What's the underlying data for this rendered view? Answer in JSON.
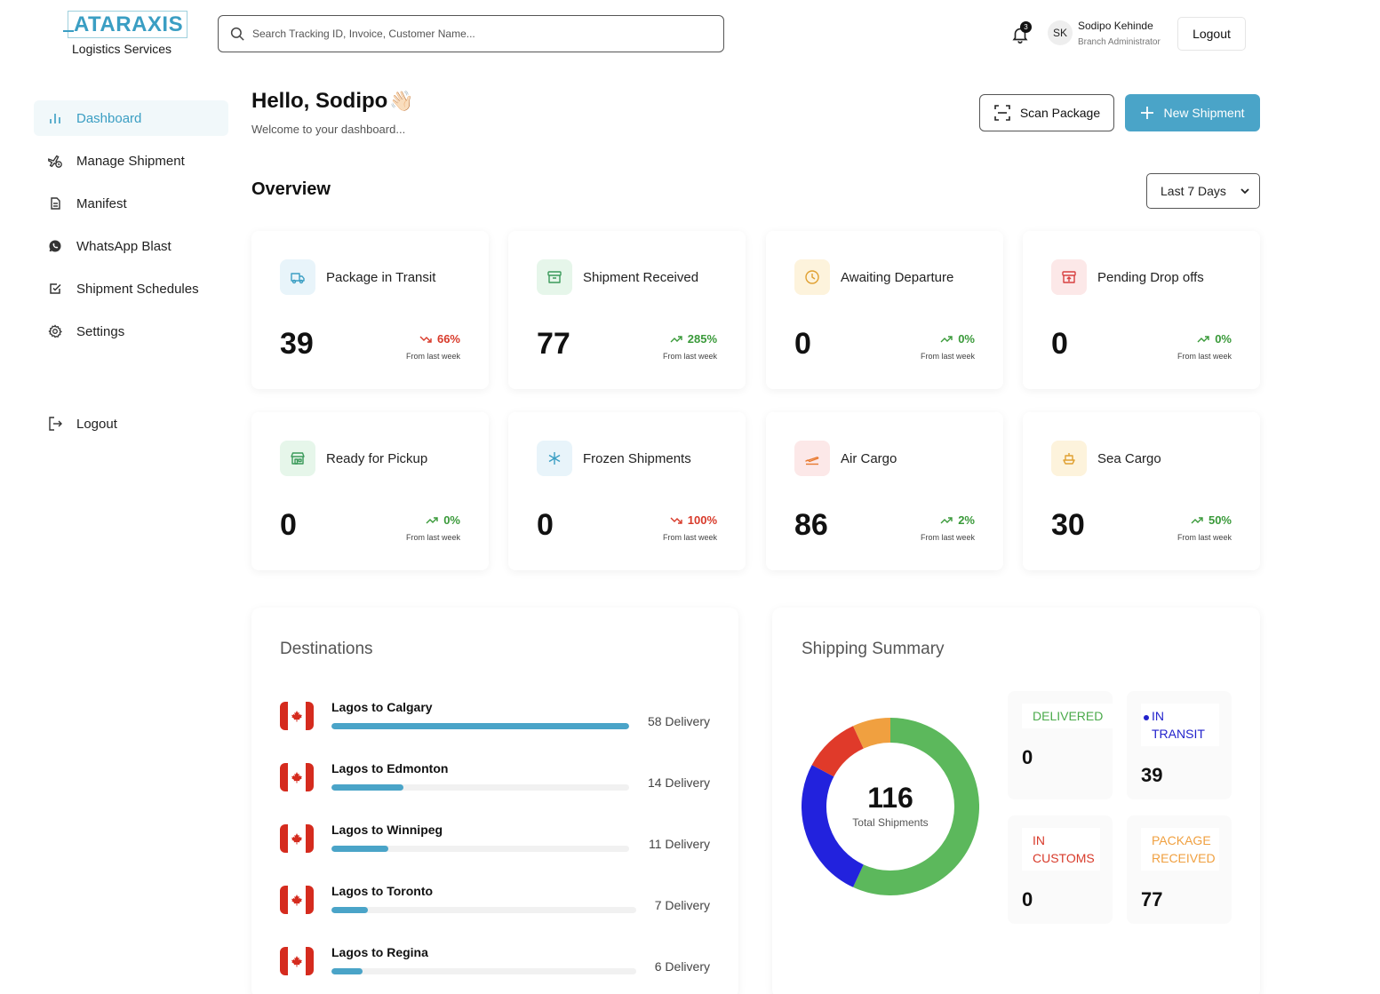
{
  "brand": {
    "name": "ATARAXIS",
    "subtitle": "Logistics Services"
  },
  "search": {
    "placeholder": "Search Tracking ID, Invoice, Customer Name..."
  },
  "notifications": {
    "count": "3"
  },
  "user": {
    "initials": "SK",
    "name": "Sodipo Kehinde",
    "role": "Branch Administrator"
  },
  "header": {
    "logout_label": "Logout"
  },
  "sidebar": {
    "items": [
      {
        "label": "Dashboard",
        "icon": "bar-chart-icon",
        "active": true
      },
      {
        "label": "Manage Shipment",
        "icon": "plane-clock-icon"
      },
      {
        "label": "Manifest",
        "icon": "document-icon"
      },
      {
        "label": "WhatsApp Blast",
        "icon": "whatsapp-icon"
      },
      {
        "label": "Shipment Schedules",
        "icon": "check-square-icon"
      },
      {
        "label": "Settings",
        "icon": "gear-icon"
      }
    ],
    "logout_label": "Logout"
  },
  "greeting": {
    "title": "Hello, Sodipo",
    "emoji": "👋🏻",
    "subtitle": "Welcome to your dashboard..."
  },
  "actions": {
    "scan_label": "Scan Package",
    "new_label": "New Shipment"
  },
  "overview": {
    "title": "Overview",
    "range": "Last 7 Days"
  },
  "stats": [
    {
      "label": "Package in Transit",
      "value": "39",
      "delta": "66%",
      "trend": "down",
      "sub": "From last week",
      "icon": "truck-icon",
      "color": "#3a9ec3",
      "bg": "#e8f4fa"
    },
    {
      "label": "Shipment Received",
      "value": "77",
      "delta": "285%",
      "trend": "up",
      "sub": "From last week",
      "icon": "archive-icon",
      "color": "#3a9a5a",
      "bg": "#e6f6ea"
    },
    {
      "label": "Awaiting Departure",
      "value": "0",
      "delta": "0%",
      "trend": "up",
      "sub": "From last week",
      "icon": "clock-icon",
      "color": "#e0a030",
      "bg": "#fdf3dc"
    },
    {
      "label": "Pending Drop offs",
      "value": "0",
      "delta": "0%",
      "trend": "up",
      "sub": "From last week",
      "icon": "box-upload-icon",
      "color": "#d84040",
      "bg": "#fce8e8"
    },
    {
      "label": "Ready for Pickup",
      "value": "0",
      "delta": "0%",
      "trend": "up",
      "sub": "From last week",
      "icon": "store-icon",
      "color": "#3a9a5a",
      "bg": "#e6f6ea"
    },
    {
      "label": "Frozen Shipments",
      "value": "0",
      "delta": "100%",
      "trend": "down",
      "sub": "From last week",
      "icon": "snowflake-icon",
      "color": "#3a9ec3",
      "bg": "#e8f4fa"
    },
    {
      "label": "Air Cargo",
      "value": "86",
      "delta": "2%",
      "trend": "up",
      "sub": "From last week",
      "icon": "plane-takeoff-icon",
      "color": "#e87a30",
      "bg": "#fce8e8"
    },
    {
      "label": "Sea Cargo",
      "value": "30",
      "delta": "50%",
      "trend": "up",
      "sub": "From last week",
      "icon": "ship-icon",
      "color": "#e0a030",
      "bg": "#fdf3dc"
    }
  ],
  "destinations": {
    "title": "Destinations",
    "max": 58,
    "items": [
      {
        "route": "Lagos to Calgary",
        "count": 58,
        "count_label": "58 Delivery"
      },
      {
        "route": "Lagos to Edmonton",
        "count": 14,
        "count_label": "14 Delivery"
      },
      {
        "route": "Lagos to Winnipeg",
        "count": 11,
        "count_label": "11 Delivery"
      },
      {
        "route": "Lagos to Toronto",
        "count": 7,
        "count_label": "7 Delivery"
      },
      {
        "route": "Lagos to Regina",
        "count": 6,
        "count_label": "6 Delivery"
      }
    ]
  },
  "summary": {
    "title": "Shipping Summary",
    "total": "116",
    "total_label": "Total Shipments",
    "segments": [
      {
        "value": 66,
        "color": "#5cb85c"
      },
      {
        "value": 30,
        "color": "#2222dd"
      },
      {
        "value": 12,
        "color": "#e03a2a"
      },
      {
        "value": 8,
        "color": "#f0a040"
      }
    ],
    "boxes": [
      {
        "label": "DELIVERED",
        "value": "0",
        "color": "#4aaa4a"
      },
      {
        "label": "IN TRANSIT",
        "value": "39",
        "color": "#2222cc"
      },
      {
        "label": "IN CUSTOMS",
        "value": "0",
        "color": "#d83a2a"
      },
      {
        "label": "PACKAGE RECEIVED",
        "value": "77",
        "color": "#f0a040"
      }
    ]
  }
}
